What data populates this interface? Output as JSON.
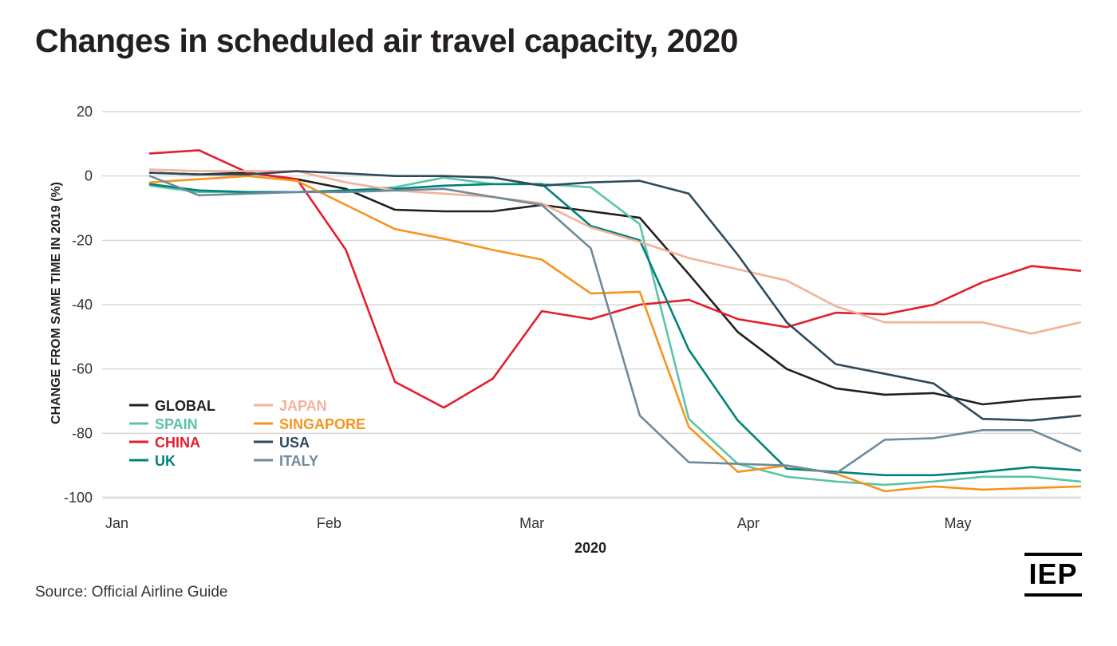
{
  "header": {
    "title": "Changes in scheduled air travel capacity, 2020"
  },
  "footer": {
    "source": "Source: Official Airline Guide",
    "logo_text": "IEP"
  },
  "chart_data": {
    "type": "line",
    "title": "Changes in scheduled air travel capacity, 2020",
    "xlabel": "2020",
    "ylabel": "CHANGE FROM SAME TIME  IN 2019 (%)",
    "ylim": [
      -100,
      20
    ],
    "yticks": [
      20,
      0,
      -20,
      -40,
      -60,
      -80,
      -100
    ],
    "xlim_days": [
      0,
      139
    ],
    "xticks": [
      {
        "label": "Jan",
        "day": 0
      },
      {
        "label": "Feb",
        "day": 30.2
      },
      {
        "label": "Mar",
        "day": 59.2
      },
      {
        "label": "Apr",
        "day": 90.3
      },
      {
        "label": "May",
        "day": 119.9
      }
    ],
    "grid": true,
    "legend_position": "bottom-left",
    "x_days": [
      6.5,
      13.5,
      20.5,
      27.5,
      34.5,
      41.5,
      48.5,
      55.5,
      62.5,
      69.5,
      76.5,
      83.5,
      90.5,
      97.5,
      104.5,
      111.5,
      118.5,
      125.5,
      132.5,
      139.5
    ],
    "series": [
      {
        "name": "GLOBAL",
        "color": "#231f20",
        "values": [
          1,
          0.5,
          1,
          -1,
          -4,
          -10.5,
          -11,
          -11,
          -9,
          -11,
          -13,
          -30.5,
          -48.5,
          -60,
          -66,
          -68,
          -67.5,
          -71,
          -69.5,
          -68.5
        ]
      },
      {
        "name": "SPAIN",
        "color": "#5bc4a8",
        "values": [
          -3,
          -5,
          -5,
          -5,
          -4.5,
          -3.5,
          -0.5,
          -2.5,
          -2.5,
          -3.5,
          -15,
          -75.5,
          -89.5,
          -93.5,
          -95,
          -96,
          -95,
          -93.5,
          -93.5,
          -95
        ]
      },
      {
        "name": "CHINA",
        "color": "#e31e2d",
        "values": [
          7,
          8,
          1,
          -1,
          -23,
          -64,
          -72,
          -63,
          -42,
          -44.5,
          -40,
          -38.5,
          -44.5,
          -47,
          -42.5,
          -43,
          -40,
          -33,
          -28,
          -29.5
        ]
      },
      {
        "name": "UK",
        "color": "#00827a",
        "values": [
          -2.5,
          -4.5,
          -5,
          -5,
          -4.5,
          -4,
          -3,
          -2.5,
          -2.5,
          -15.5,
          -20,
          -54,
          -76,
          -91,
          -92,
          -93,
          -93,
          -92,
          -90.5,
          -91.5
        ]
      },
      {
        "name": "JAPAN",
        "color": "#f4b19a",
        "values": [
          2,
          1.5,
          1.5,
          1.5,
          -2,
          -4.5,
          -5.5,
          -6.5,
          -8.5,
          -16,
          -20.5,
          -25.5,
          -29,
          -32.5,
          -40.5,
          -45.5,
          -45.5,
          -45.5,
          -49,
          -45.5
        ]
      },
      {
        "name": "SINGAPORE",
        "color": "#f7941d",
        "values": [
          -2,
          -1,
          0,
          -1.5,
          -9,
          -16.5,
          -19.5,
          -23,
          -26,
          -36.5,
          -36,
          -78,
          -92,
          -90,
          -92.5,
          -98,
          -96.5,
          -97.5,
          -97,
          -96.5
        ]
      },
      {
        "name": "USA",
        "color": "#2d4a5c",
        "values": [
          1,
          0.5,
          0.5,
          1.5,
          0.8,
          0,
          0,
          -0.5,
          -3,
          -2,
          -1.5,
          -5.5,
          -24.5,
          -45.5,
          -58.5,
          -61.5,
          -64.5,
          -75.5,
          -76,
          -74.5
        ]
      },
      {
        "name": "ITALY",
        "color": "#6e8a9a",
        "values": [
          0,
          -6,
          -5.5,
          -5,
          -5,
          -4.5,
          -4,
          -6.5,
          -9,
          -22.5,
          -74.5,
          -89,
          -89.5,
          -90,
          -92.5,
          -82,
          -81.5,
          -79,
          -79,
          -85.5
        ]
      }
    ]
  }
}
